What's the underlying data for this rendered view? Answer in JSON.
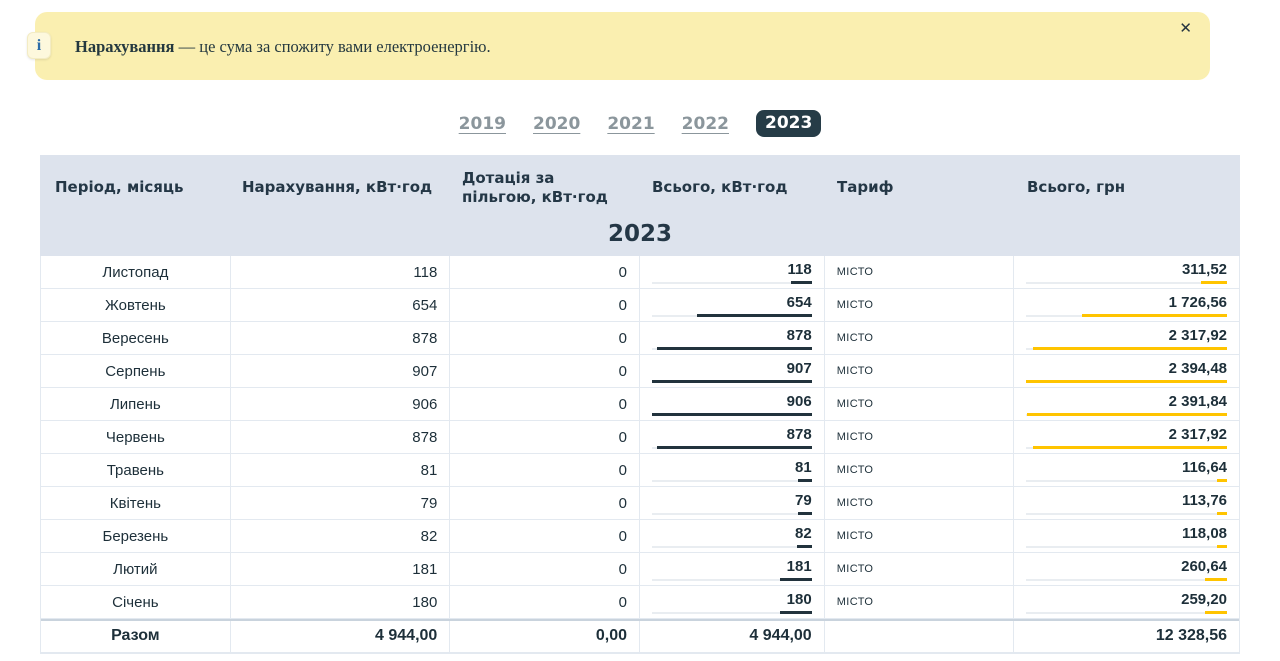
{
  "banner": {
    "icon_glyph": "i",
    "bold_text": "Нарахування",
    "text": " — це сума за спожиту вами електроенергію.",
    "close_glyph": "✕"
  },
  "tabs": {
    "years": [
      "2019",
      "2020",
      "2021",
      "2022",
      "2023"
    ],
    "active": "2023"
  },
  "table": {
    "columns": [
      "Період, місяць",
      "Нарахування, кВт·год",
      "Дотація за пільгою, кВт·год",
      "Всього, кВт·год",
      "Тариф",
      "Всього, грн"
    ],
    "group_title": "2023",
    "rows": [
      {
        "month": "Листопад",
        "accrued": "118",
        "subsidy": "0",
        "total_kwh": "118",
        "tariff": "місто",
        "total_uah": "311,52",
        "kwh_pct": 13,
        "uah_pct": 13
      },
      {
        "month": "Жовтень",
        "accrued": "654",
        "subsidy": "0",
        "total_kwh": "654",
        "tariff": "місто",
        "total_uah": "1 726,56",
        "kwh_pct": 72.1,
        "uah_pct": 72.1
      },
      {
        "month": "Вересень",
        "accrued": "878",
        "subsidy": "0",
        "total_kwh": "878",
        "tariff": "місто",
        "total_uah": "2 317,92",
        "kwh_pct": 96.8,
        "uah_pct": 96.8
      },
      {
        "month": "Серпень",
        "accrued": "907",
        "subsidy": "0",
        "total_kwh": "907",
        "tariff": "місто",
        "total_uah": "2 394,48",
        "kwh_pct": 100,
        "uah_pct": 100
      },
      {
        "month": "Липень",
        "accrued": "906",
        "subsidy": "0",
        "total_kwh": "906",
        "tariff": "місто",
        "total_uah": "2 391,84",
        "kwh_pct": 99.9,
        "uah_pct": 99.9
      },
      {
        "month": "Червень",
        "accrued": "878",
        "subsidy": "0",
        "total_kwh": "878",
        "tariff": "місто",
        "total_uah": "2 317,92",
        "kwh_pct": 96.8,
        "uah_pct": 96.8
      },
      {
        "month": "Травень",
        "accrued": "81",
        "subsidy": "0",
        "total_kwh": "81",
        "tariff": "місто",
        "total_uah": "116,64",
        "kwh_pct": 8.9,
        "uah_pct": 4.9
      },
      {
        "month": "Квітень",
        "accrued": "79",
        "subsidy": "0",
        "total_kwh": "79",
        "tariff": "місто",
        "total_uah": "113,76",
        "kwh_pct": 8.7,
        "uah_pct": 4.8
      },
      {
        "month": "Березень",
        "accrued": "82",
        "subsidy": "0",
        "total_kwh": "82",
        "tariff": "місто",
        "total_uah": "118,08",
        "kwh_pct": 9.0,
        "uah_pct": 4.9
      },
      {
        "month": "Лютий",
        "accrued": "181",
        "subsidy": "0",
        "total_kwh": "181",
        "tariff": "місто",
        "total_uah": "260,64",
        "kwh_pct": 20.0,
        "uah_pct": 10.9
      },
      {
        "month": "Січень",
        "accrued": "180",
        "subsidy": "0",
        "total_kwh": "180",
        "tariff": "місто",
        "total_uah": "259,20",
        "kwh_pct": 19.8,
        "uah_pct": 10.8
      }
    ],
    "totals": {
      "label": "Разом",
      "accrued": "4 944,00",
      "subsidy": "0,00",
      "total_kwh": "4 944,00",
      "tariff": "",
      "total_uah": "12 328,56"
    }
  },
  "colors": {
    "accent_dark": "#24343f",
    "bar_dark": "#22333d",
    "bar_yellow": "#ffc400",
    "banner_bg": "#faefb0",
    "header_bg": "#dde3ed",
    "link_gray": "#8b969c"
  }
}
